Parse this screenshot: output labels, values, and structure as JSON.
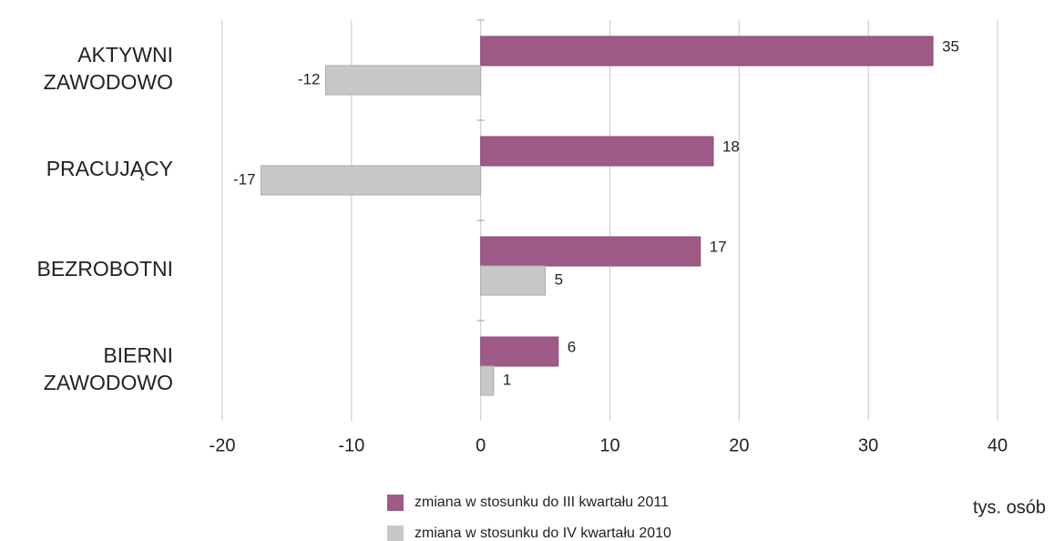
{
  "chart_data": {
    "type": "hbar",
    "x_label": "tys. osób",
    "categories": [
      "AKTYWNI ZAWODOWO",
      "PRACUJĄCY",
      "BEZROBOTNI",
      "BIERNI ZAWODOWO"
    ],
    "series": [
      {
        "name": "zmiana w stosunku do III kwartału 2011",
        "color": "#a05a87",
        "values": [
          35,
          18,
          17,
          6
        ]
      },
      {
        "name": "zmiana w stosunku do IV kwartału 2010",
        "color": "#c8c8c8",
        "values": [
          -12,
          -17,
          5,
          1
        ]
      }
    ],
    "xlim": [
      -20,
      40
    ],
    "xticks": [
      -20,
      -10,
      0,
      10,
      20,
      30,
      40
    ],
    "grid": true
  }
}
